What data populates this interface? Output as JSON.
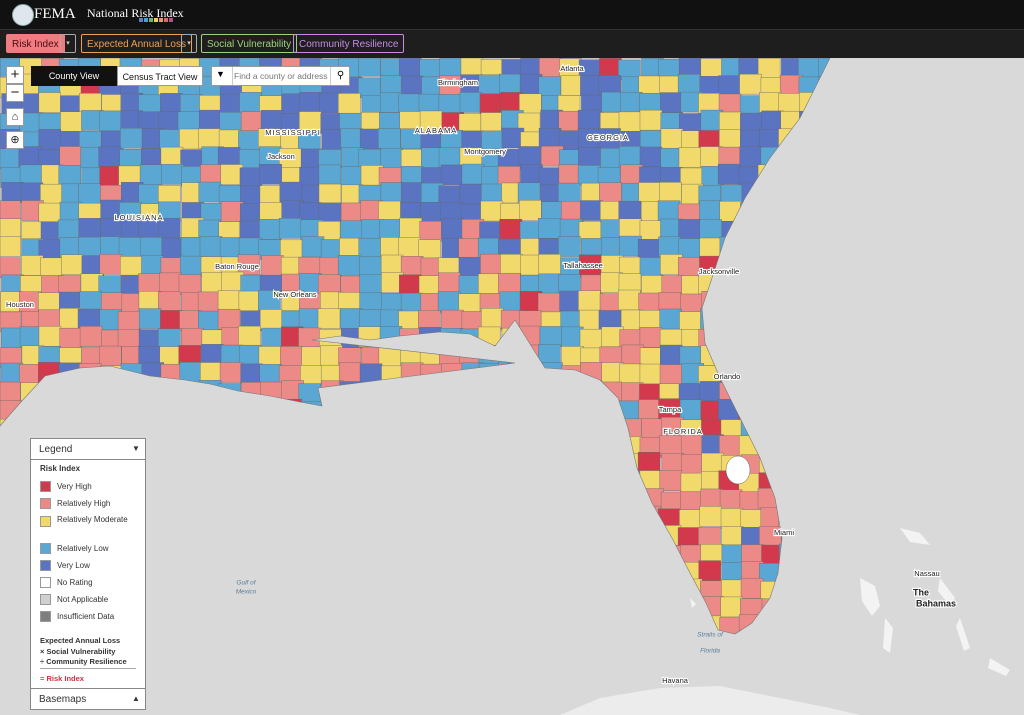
{
  "header": {
    "logo": "FEMA",
    "title": "National Risk Index"
  },
  "tabs": [
    "Risk Index",
    "Expected Annual Loss",
    "Social Vulnerability",
    "Community Resilience"
  ],
  "map_controls": [
    "+",
    "−"
  ],
  "view_toggle": [
    "County View",
    "Census Tract View"
  ],
  "search": {
    "placeholder": "Find a county or address"
  },
  "map_labels": [
    "Birmingham",
    "Atlanta",
    "MISSISSIPPI",
    "ALABAMA",
    "GEORGIA",
    "Jackson",
    "Montgomery",
    "LOUISIANA",
    "Baton Rouge",
    "New Orleans",
    "Tallahassee",
    "Jacksonville",
    "Houston",
    "Orlando",
    "Tampa",
    "FLORIDA",
    "Miami",
    "Gulf of",
    "Mexico",
    "Nassau",
    "The",
    "Bahamas",
    "Straits of",
    "Florida",
    "Havana"
  ],
  "legend": {
    "title": "Legend",
    "section": "Risk Index",
    "items": [
      "Very High",
      "Relatively High",
      "Relatively Moderate",
      "Relatively Low",
      "Very Low",
      "No Rating",
      "Not Applicable",
      "Insufficient Data"
    ],
    "formula": [
      "Expected Annual Loss",
      "× Social Vulnerability",
      "÷ Community Resilience",
      "= Risk Index"
    ],
    "basemaps": "Basemaps"
  }
}
